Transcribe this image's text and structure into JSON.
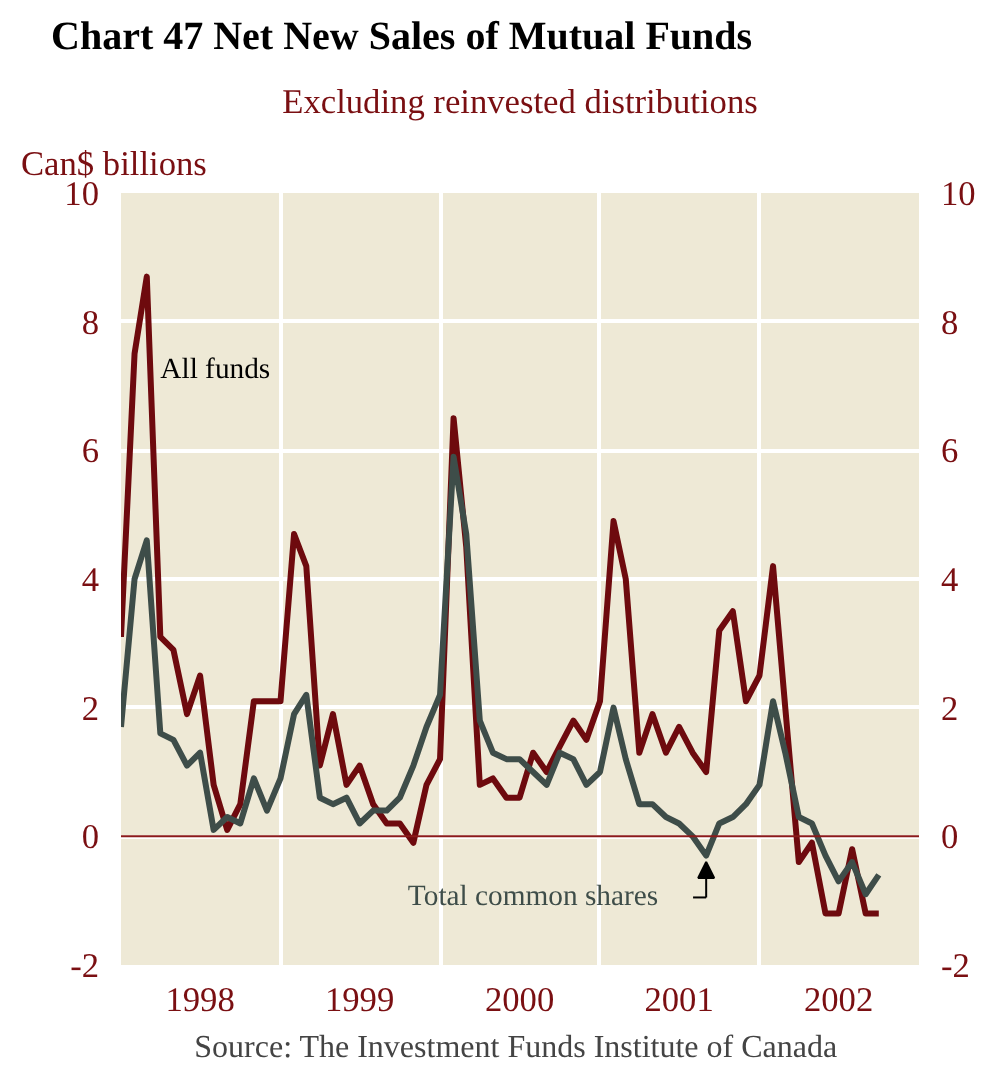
{
  "chart_data": {
    "type": "line",
    "title": "Chart 47    Net New Sales of Mutual Funds",
    "subtitle": "Excluding reinvested distributions",
    "ylabel": "Can$ billions",
    "x": [
      "1998-01",
      "1998-02",
      "1998-03",
      "1998-04",
      "1998-05",
      "1998-06",
      "1998-07",
      "1998-08",
      "1998-09",
      "1998-10",
      "1998-11",
      "1998-12",
      "1999-01",
      "1999-02",
      "1999-03",
      "1999-04",
      "1999-05",
      "1999-06",
      "1999-07",
      "1999-08",
      "1999-09",
      "1999-10",
      "1999-11",
      "1999-12",
      "2000-01",
      "2000-02",
      "2000-03",
      "2000-04",
      "2000-05",
      "2000-06",
      "2000-07",
      "2000-08",
      "2000-09",
      "2000-10",
      "2000-11",
      "2000-12",
      "2001-01",
      "2001-02",
      "2001-03",
      "2001-04",
      "2001-05",
      "2001-06",
      "2001-07",
      "2001-08",
      "2001-09",
      "2001-10",
      "2001-11",
      "2001-12",
      "2002-01",
      "2002-02",
      "2002-03",
      "2002-04",
      "2002-05",
      "2002-06",
      "2002-07",
      "2002-08",
      "2002-09",
      "2002-10"
    ],
    "series": [
      {
        "name": "All funds",
        "color": "#6e0a0e",
        "values": [
          3.1,
          7.5,
          8.7,
          3.1,
          2.9,
          1.9,
          2.5,
          0.8,
          0.1,
          0.5,
          2.1,
          2.1,
          2.1,
          4.7,
          4.2,
          1.1,
          1.9,
          0.8,
          1.1,
          0.5,
          0.2,
          0.2,
          -0.1,
          0.8,
          1.2,
          6.5,
          4.5,
          0.8,
          0.9,
          0.6,
          0.6,
          1.3,
          1.0,
          1.4,
          1.8,
          1.5,
          2.1,
          4.9,
          4.0,
          1.3,
          1.9,
          1.3,
          1.7,
          1.3,
          1.0,
          3.2,
          3.5,
          2.1,
          2.5,
          4.2,
          2.0,
          -0.4,
          -0.1,
          -1.2,
          -1.2,
          -0.2,
          -1.2,
          -1.2
        ]
      },
      {
        "name": "Total common shares",
        "color": "#3e4d49",
        "values": [
          1.7,
          4.0,
          4.6,
          1.6,
          1.5,
          1.1,
          1.3,
          0.1,
          0.3,
          0.2,
          0.9,
          0.4,
          0.9,
          1.9,
          2.2,
          0.6,
          0.5,
          0.6,
          0.2,
          0.4,
          0.4,
          0.6,
          1.1,
          1.7,
          2.2,
          5.9,
          4.7,
          1.8,
          1.3,
          1.2,
          1.2,
          1.0,
          0.8,
          1.3,
          1.2,
          0.8,
          1.0,
          2.0,
          1.2,
          0.5,
          0.5,
          0.3,
          0.2,
          0.0,
          -0.3,
          0.2,
          0.3,
          0.5,
          0.8,
          2.1,
          1.3,
          0.3,
          0.2,
          -0.3,
          -0.7,
          -0.4,
          -0.9,
          -0.6
        ]
      }
    ],
    "xlim": [
      "1998-01",
      "2003-01"
    ],
    "xticks": [
      {
        "value": "1998-01",
        "label": null
      },
      {
        "value": "1998-07",
        "label": "1998"
      },
      {
        "value": "1999-01",
        "label": null
      },
      {
        "value": "1999-07",
        "label": "1999"
      },
      {
        "value": "2000-01",
        "label": null
      },
      {
        "value": "2000-07",
        "label": "2000"
      },
      {
        "value": "2001-01",
        "label": null
      },
      {
        "value": "2001-07",
        "label": "2001"
      },
      {
        "value": "2002-01",
        "label": null
      },
      {
        "value": "2002-07",
        "label": "2002"
      },
      {
        "value": "2003-01",
        "label": null
      }
    ],
    "ylim": [
      -2,
      10
    ],
    "yticks": [
      -2,
      0,
      2,
      4,
      6,
      8,
      10
    ],
    "y2lim": [
      -2,
      10
    ],
    "y2ticks": [
      -2,
      0,
      2,
      4,
      6,
      8,
      10
    ],
    "ref_lines": [
      {
        "axis": "y",
        "value": 0,
        "label": null,
        "color": "#8b1a1a"
      }
    ],
    "grid": true,
    "line_style": "solid",
    "marker": "none",
    "annotations": [
      "Source:  The Investment Funds Institute of Canada"
    ]
  }
}
